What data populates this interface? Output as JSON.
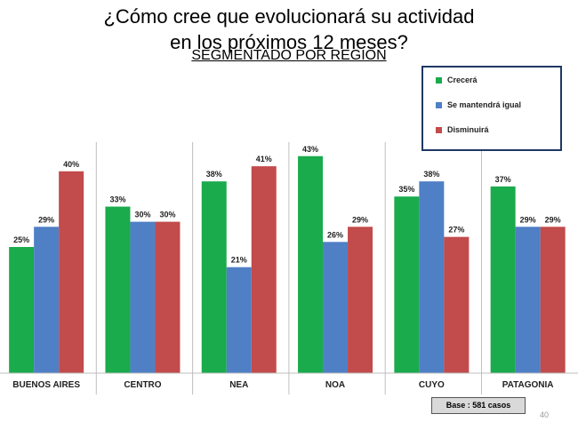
{
  "slide": {
    "title_line1": "¿Cómo cree que evolucionará su actividad",
    "title_line2": "en los próximos 12 meses?",
    "subtitle": "SEGMENTADO POR REGIÓN",
    "base_note": "Base : 581 casos",
    "page_number": "40"
  },
  "chart_data": {
    "type": "bar",
    "title": "",
    "xlabel": "",
    "ylabel": "",
    "ylim": [
      0,
      50
    ],
    "grid": false,
    "legend_position": "top-right",
    "categories": [
      "BUENOS AIRES",
      "CENTRO",
      "NEA",
      "NOA",
      "CUYO",
      "PATAGONIA"
    ],
    "series": [
      {
        "name": "Crecerá",
        "color": "#1aab4c",
        "values": [
          25,
          33,
          38,
          43,
          35,
          37
        ]
      },
      {
        "name": "Se mantendrá igual",
        "color": "#4f7fc5",
        "values": [
          29,
          30,
          21,
          26,
          38,
          29
        ]
      },
      {
        "name": "Disminuirá",
        "color": "#c24b4b",
        "values": [
          40,
          30,
          41,
          29,
          27,
          29
        ]
      }
    ],
    "value_suffix": "%"
  }
}
